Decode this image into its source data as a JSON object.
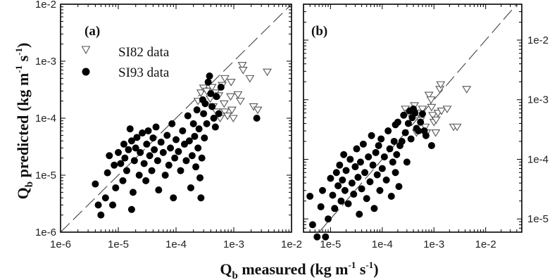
{
  "chart_data": [
    {
      "type": "scatter",
      "panel_label": "(a)",
      "xscale": "log",
      "yscale": "log",
      "xlim": [
        1e-06,
        0.01
      ],
      "ylim": [
        1e-06,
        0.01
      ],
      "xticks": [
        "1e-6",
        "1e-5",
        "1e-4",
        "1e-3",
        "1e-2"
      ],
      "yticks": [
        "1e-6",
        "1e-5",
        "1e-4",
        "1e-3",
        "1e-2"
      ],
      "ylabel": "Q",
      "ylabel_sub": "b",
      "ylabel_rest": " predicted (kg m",
      "ylabel_sup1": "-1",
      "ylabel_mid": " s",
      "ylabel_sup2": "-1",
      "ylabel_end": ")",
      "reference_line": "1:1",
      "legend": [
        {
          "marker": "triangle-down-open",
          "label": "SI82 data"
        },
        {
          "marker": "circle-filled",
          "label": "SI93 data"
        }
      ],
      "series": [
        {
          "name": "SI82 data",
          "marker": "triangle-down-open",
          "points": [
            [
              0.00027,
              0.00028
            ],
            [
              0.0003,
              0.00034
            ],
            [
              0.00034,
              0.0003
            ],
            [
              0.00039,
              0.00022
            ],
            [
              0.00044,
              0.00016
            ],
            [
              0.0005,
              0.00013
            ],
            [
              0.00058,
              0.0001
            ],
            [
              0.00042,
              0.00035
            ],
            [
              0.00048,
              0.00028
            ],
            [
              0.00055,
              0.00025
            ],
            [
              0.00068,
              0.00018
            ],
            [
              0.0007,
              0.00013
            ],
            [
              0.00078,
              0.00011
            ],
            [
              0.00063,
              0.00038
            ],
            [
              0.0007,
              0.0005
            ],
            [
              0.00088,
              0.00024
            ],
            [
              0.00093,
              0.00014
            ],
            [
              0.00098,
              0.0001
            ],
            [
              0.0009,
              0.00043
            ],
            [
              0.00118,
              0.00026
            ],
            [
              0.0013,
              0.0002
            ],
            [
              0.0014,
              0.00085
            ],
            [
              0.00145,
              0.0007
            ],
            [
              0.0019,
              0.0005
            ],
            [
              0.0022,
              0.00016
            ],
            [
              0.0026,
              0.00014
            ],
            [
              0.0038,
              0.00065
            ],
            [
              0.00024,
              0.0002
            ]
          ]
        },
        {
          "name": "SI93 data",
          "marker": "circle-filled",
          "points": [
            [
              4e-06,
              7e-06
            ],
            [
              4.5e-06,
              3e-06
            ],
            [
              5e-06,
              2e-06
            ],
            [
              6e-06,
              4e-06
            ],
            [
              6.5e-06,
              1.1e-05
            ],
            [
              7e-06,
              2.2e-05
            ],
            [
              8e-06,
              3e-06
            ],
            [
              8.5e-06,
              1.5e-05
            ],
            [
              9e-06,
              6e-06
            ],
            [
              1e-05,
              2.5e-05
            ],
            [
              1.1e-05,
              1.6e-05
            ],
            [
              1.2e-05,
              8e-06
            ],
            [
              1.25e-05,
              3.5e-05
            ],
            [
              1.3e-05,
              2e-05
            ],
            [
              1.4e-05,
              1.2e-05
            ],
            [
              1.5e-05,
              2.8e-05
            ],
            [
              1.6e-05,
              6.5e-05
            ],
            [
              1.7e-05,
              4e-05
            ],
            [
              1.8e-05,
              5e-06
            ],
            [
              1.9e-05,
              1.8e-05
            ],
            [
              2e-05,
              3e-05
            ],
            [
              2.1e-05,
              4.6e-05
            ],
            [
              2.3e-05,
              1e-05
            ],
            [
              2.4e-05,
              2.5e-05
            ],
            [
              2.6e-05,
              5.5e-05
            ],
            [
              2.8e-05,
              1.6e-05
            ],
            [
              3e-05,
              8e-06
            ],
            [
              3.1e-05,
              3.5e-05
            ],
            [
              3.3e-05,
              6e-05
            ],
            [
              3.5e-05,
              2.2e-05
            ],
            [
              3.8e-05,
              1.2e-05
            ],
            [
              4e-05,
              4.5e-05
            ],
            [
              4.2e-05,
              2.8e-05
            ],
            [
              4.5e-05,
              7e-05
            ],
            [
              4.8e-05,
              1.8e-05
            ],
            [
              5e-05,
              5.5e-06
            ],
            [
              5.5e-05,
              3.8e-05
            ],
            [
              6e-05,
              2.5e-05
            ],
            [
              6.5e-05,
              1e-05
            ],
            [
              7e-05,
              5e-05
            ],
            [
              7.5e-05,
              1.5e-05
            ],
            [
              8e-05,
              3e-05
            ],
            [
              8.5e-05,
              8e-05
            ],
            [
              9e-05,
              4e-06
            ],
            [
              9.5e-05,
              2e-05
            ],
            [
              0.0001,
              4.2e-05
            ],
            [
              0.00011,
              2.6e-05
            ],
            [
              0.00012,
              1.2e-05
            ],
            [
              0.00013,
              6e-05
            ],
            [
              0.00014,
              3.5e-05
            ],
            [
              0.00015,
              1.8e-05
            ],
            [
              0.00016,
              0.00011
            ],
            [
              0.00017,
              4e-05
            ],
            [
              0.00018,
              6e-06
            ],
            [
              0.00019,
              2.2e-05
            ],
            [
              0.0002,
              8e-05
            ],
            [
              0.00021,
              4.8e-05
            ],
            [
              0.00022,
              1.4e-05
            ],
            [
              0.00023,
              0.00014
            ],
            [
              0.00024,
              3e-05
            ],
            [
              0.00025,
              6.5e-05
            ],
            [
              0.00026,
              9e-06
            ],
            [
              0.00027,
              4e-06
            ],
            [
              0.00028,
              2e-05
            ],
            [
              0.00029,
              0.00021
            ],
            [
              0.0003,
              0.00012
            ],
            [
              0.00031,
              4.5e-05
            ],
            [
              0.00032,
              0.00018
            ],
            [
              0.00034,
              8e-05
            ],
            [
              0.00036,
              0.00043
            ],
            [
              0.00038,
              0.00055
            ],
            [
              0.0004,
              0.00027
            ],
            [
              0.00042,
              0.00016
            ],
            [
              0.00045,
              0.0001
            ],
            [
              0.00048,
              7e-05
            ],
            [
              0.0005,
              0.00024
            ],
            [
              0.00055,
              0.00012
            ],
            [
              0.0006,
              0.00035
            ],
            [
              0.0025,
              0.0001
            ],
            [
              1.7e-05,
              2.5e-06
            ]
          ]
        }
      ]
    },
    {
      "type": "scatter",
      "panel_label": "(b)",
      "xscale": "log",
      "yscale": "log",
      "xlim": [
        3e-06,
        0.05
      ],
      "ylim": [
        6e-06,
        0.04
      ],
      "xticks": [
        "1e-5",
        "1e-4",
        "1e-3",
        "1e-2"
      ],
      "yticks_right": [
        "1e-5",
        "1e-4",
        "1e-3",
        "1e-2"
      ],
      "reference_line": "1:1",
      "series": [
        {
          "name": "SI82 data",
          "marker": "triangle-down-open",
          "points": [
            [
              0.00028,
              0.0007
            ],
            [
              0.00033,
              0.0006
            ],
            [
              0.00042,
              0.0008
            ],
            [
              0.00046,
              0.00028
            ],
            [
              0.0005,
              0.0006
            ],
            [
              0.00055,
              0.00045
            ],
            [
              0.0006,
              0.0007
            ],
            [
              0.00068,
              0.00035
            ],
            [
              0.00072,
              0.00028
            ],
            [
              0.0008,
              0.0012
            ],
            [
              0.00088,
              0.001
            ],
            [
              0.0009,
              0.00075
            ],
            [
              0.00095,
              0.00055
            ],
            [
              0.001,
              0.00042
            ],
            [
              0.00108,
              0.00028
            ],
            [
              0.0012,
              0.0006
            ],
            [
              0.0013,
              0.0015
            ],
            [
              0.00135,
              0.0018
            ],
            [
              0.0014,
              0.00065
            ],
            [
              0.0018,
              0.0007
            ],
            [
              0.0024,
              0.00035
            ],
            [
              0.0028,
              0.00035
            ],
            [
              0.0043,
              0.0015
            ],
            [
              0.0011,
              0.00046
            ]
          ]
        },
        {
          "name": "SI93 data",
          "marker": "circle-filled",
          "points": [
            [
              4e-06,
              2.4e-05
            ],
            [
              4.5e-06,
              8e-06
            ],
            [
              5.5e-06,
              5e-06
            ],
            [
              6.5e-06,
              1.6e-05
            ],
            [
              7e-06,
              3e-05
            ],
            [
              8e-06,
              5e-06
            ],
            [
              9e-06,
              1e-05
            ],
            [
              1e-05,
              4.8e-05
            ],
            [
              1.1e-05,
              2.5e-05
            ],
            [
              1.2e-05,
              1.5e-05
            ],
            [
              1.3e-05,
              6e-05
            ],
            [
              1.4e-05,
              3.6e-05
            ],
            [
              1.5e-05,
              8e-05
            ],
            [
              1.6e-05,
              2e-05
            ],
            [
              1.7e-05,
              4.5e-05
            ],
            [
              1.8e-05,
              0.00012
            ],
            [
              1.9e-05,
              3e-05
            ],
            [
              2e-05,
              6.5e-05
            ],
            [
              2.2e-05,
              1.8e-05
            ],
            [
              2.4e-05,
              0.0001
            ],
            [
              2.6e-05,
              4e-05
            ],
            [
              2.8e-05,
              2.6e-05
            ],
            [
              3e-05,
              7.5e-05
            ],
            [
              3.2e-05,
              0.00015
            ],
            [
              3.4e-05,
              5e-05
            ],
            [
              3.6e-05,
              1.2e-05
            ],
            [
              3.8e-05,
              9e-05
            ],
            [
              4e-05,
              3.2e-05
            ],
            [
              4.3e-05,
              0.00018
            ],
            [
              4.6e-05,
              6e-05
            ],
            [
              5e-05,
              2.2e-05
            ],
            [
              5.4e-05,
              0.00011
            ],
            [
              5.8e-05,
              4.2e-05
            ],
            [
              6.2e-05,
              0.00025
            ],
            [
              6.6e-05,
              8e-05
            ],
            [
              7e-05,
              1.5e-05
            ],
            [
              7.5e-05,
              0.00013
            ],
            [
              8e-05,
              5.5e-05
            ],
            [
              8.5e-05,
              0.00017
            ],
            [
              9e-05,
              3e-05
            ],
            [
              9.5e-05,
              0.00022
            ],
            [
              0.0001,
              7e-05
            ],
            [
              0.00011,
              0.00011
            ],
            [
              0.00012,
              4.5e-05
            ],
            [
              0.00013,
              0.0003
            ],
            [
              0.00014,
              0.00015
            ],
            [
              0.00015,
              2.4e-05
            ],
            [
              0.00016,
              9e-05
            ],
            [
              0.00017,
              0.0002
            ],
            [
              0.00018,
              6e-05
            ],
            [
              0.00019,
              0.00012
            ],
            [
              0.0002,
              0.00042
            ],
            [
              0.00021,
              3.5e-05
            ],
            [
              0.00022,
              0.00017
            ],
            [
              0.00024,
              0.0002
            ],
            [
              0.00026,
              0.00055
            ],
            [
              0.00028,
              0.00028
            ],
            [
              0.0003,
              9e-05
            ],
            [
              0.00032,
              0.0004
            ],
            [
              0.00034,
              0.00065
            ],
            [
              0.00036,
              0.00022
            ],
            [
              0.00038,
              0.0005
            ],
            [
              0.0004,
              0.0007
            ],
            [
              0.00043,
              0.0006
            ],
            [
              0.00046,
              0.00033
            ],
            [
              0.0005,
              0.0003
            ],
            [
              0.00055,
              0.00042
            ],
            [
              0.0006,
              0.00058
            ],
            [
              0.00065,
              0.0003
            ],
            [
              0.0007,
              0.00025
            ],
            [
              0.0009,
              0.00017
            ],
            [
              0.00018,
              0.00038
            ]
          ]
        }
      ]
    }
  ],
  "shared_xlabel": {
    "q": "Q",
    "sub": "b",
    "rest": " measured (kg m",
    "sup1": "-1",
    "mid": " s",
    "sup2": "-1",
    "end": ")"
  }
}
